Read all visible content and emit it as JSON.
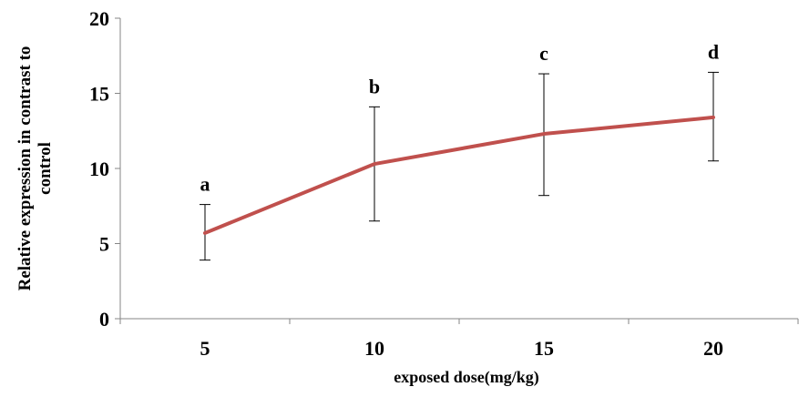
{
  "chart_data": {
    "type": "line",
    "xlabel": "exposed dose(mg/kg)",
    "ylabel_lines": [
      "Relative expression in contrast to",
      "control"
    ],
    "categories": [
      "5",
      "10",
      "15",
      "20"
    ],
    "ylim": [
      0,
      20
    ],
    "yticks": [
      "0",
      "5",
      "10",
      "15",
      "20"
    ],
    "grid": false,
    "legend": "none",
    "series": [
      {
        "values": [
          5.7,
          10.3,
          12.3,
          13.4
        ],
        "error_low": [
          3.9,
          6.5,
          8.2,
          10.5
        ],
        "error_high": [
          7.6,
          14.1,
          16.3,
          16.4
        ],
        "labels": [
          "a",
          "b",
          "c",
          "d"
        ],
        "color": "#c0504d"
      }
    ]
  }
}
